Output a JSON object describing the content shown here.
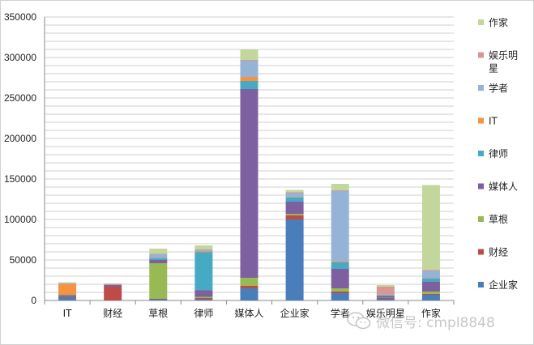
{
  "chart_data": {
    "type": "bar",
    "stacked": true,
    "categories": [
      "IT",
      "财经",
      "草根",
      "律师",
      "媒体人",
      "企业家",
      "学者",
      "娱乐明星",
      "作家"
    ],
    "ylim": [
      0,
      350000
    ],
    "yticks": [
      0,
      50000,
      100000,
      150000,
      200000,
      250000,
      300000,
      350000
    ],
    "ytick_labels": [
      "0",
      "50000",
      "100000",
      "150000",
      "200000",
      "250000",
      "300000",
      "350000"
    ],
    "grid": true,
    "legend_position": "right",
    "series": [
      {
        "name": "企业家",
        "color": "#4a7ebb",
        "values": [
          4000,
          0,
          1500,
          1500,
          15000,
          100000,
          9000,
          2000,
          7000
        ]
      },
      {
        "name": "财经",
        "color": "#be4b48",
        "values": [
          1000,
          17000,
          500,
          1500,
          3000,
          5000,
          2000,
          1000,
          1000
        ]
      },
      {
        "name": "草根",
        "color": "#98b954",
        "values": [
          500,
          0,
          44000,
          1500,
          10000,
          2000,
          4000,
          500,
          3000
        ]
      },
      {
        "name": "媒体人",
        "color": "#7d60a0",
        "values": [
          1000,
          2000,
          4000,
          8000,
          233000,
          15000,
          24000,
          2000,
          12000
        ]
      },
      {
        "name": "律师",
        "color": "#46aac5",
        "values": [
          500,
          0,
          2000,
          47000,
          10000,
          5000,
          8000,
          500,
          4000
        ]
      },
      {
        "name": "IT",
        "color": "#f69240",
        "values": [
          13000,
          500,
          500,
          1000,
          5000,
          500,
          1000,
          500,
          500
        ]
      },
      {
        "name": "学者",
        "color": "#94b3d7",
        "values": [
          500,
          500,
          4500,
          2000,
          20000,
          5000,
          87000,
          1500,
          9000
        ]
      },
      {
        "name": "娱乐明星",
        "color": "#d99694",
        "values": [
          500,
          500,
          500,
          500,
          1000,
          1000,
          1000,
          9000,
          1000
        ]
      },
      {
        "name": "作家",
        "color": "#c3d69b",
        "values": [
          1500,
          500,
          6500,
          5000,
          13000,
          3000,
          8000,
          2000,
          105000
        ]
      }
    ]
  },
  "watermark": {
    "text": "微信号: cmpl8848",
    "icon": "wechat-icon"
  }
}
